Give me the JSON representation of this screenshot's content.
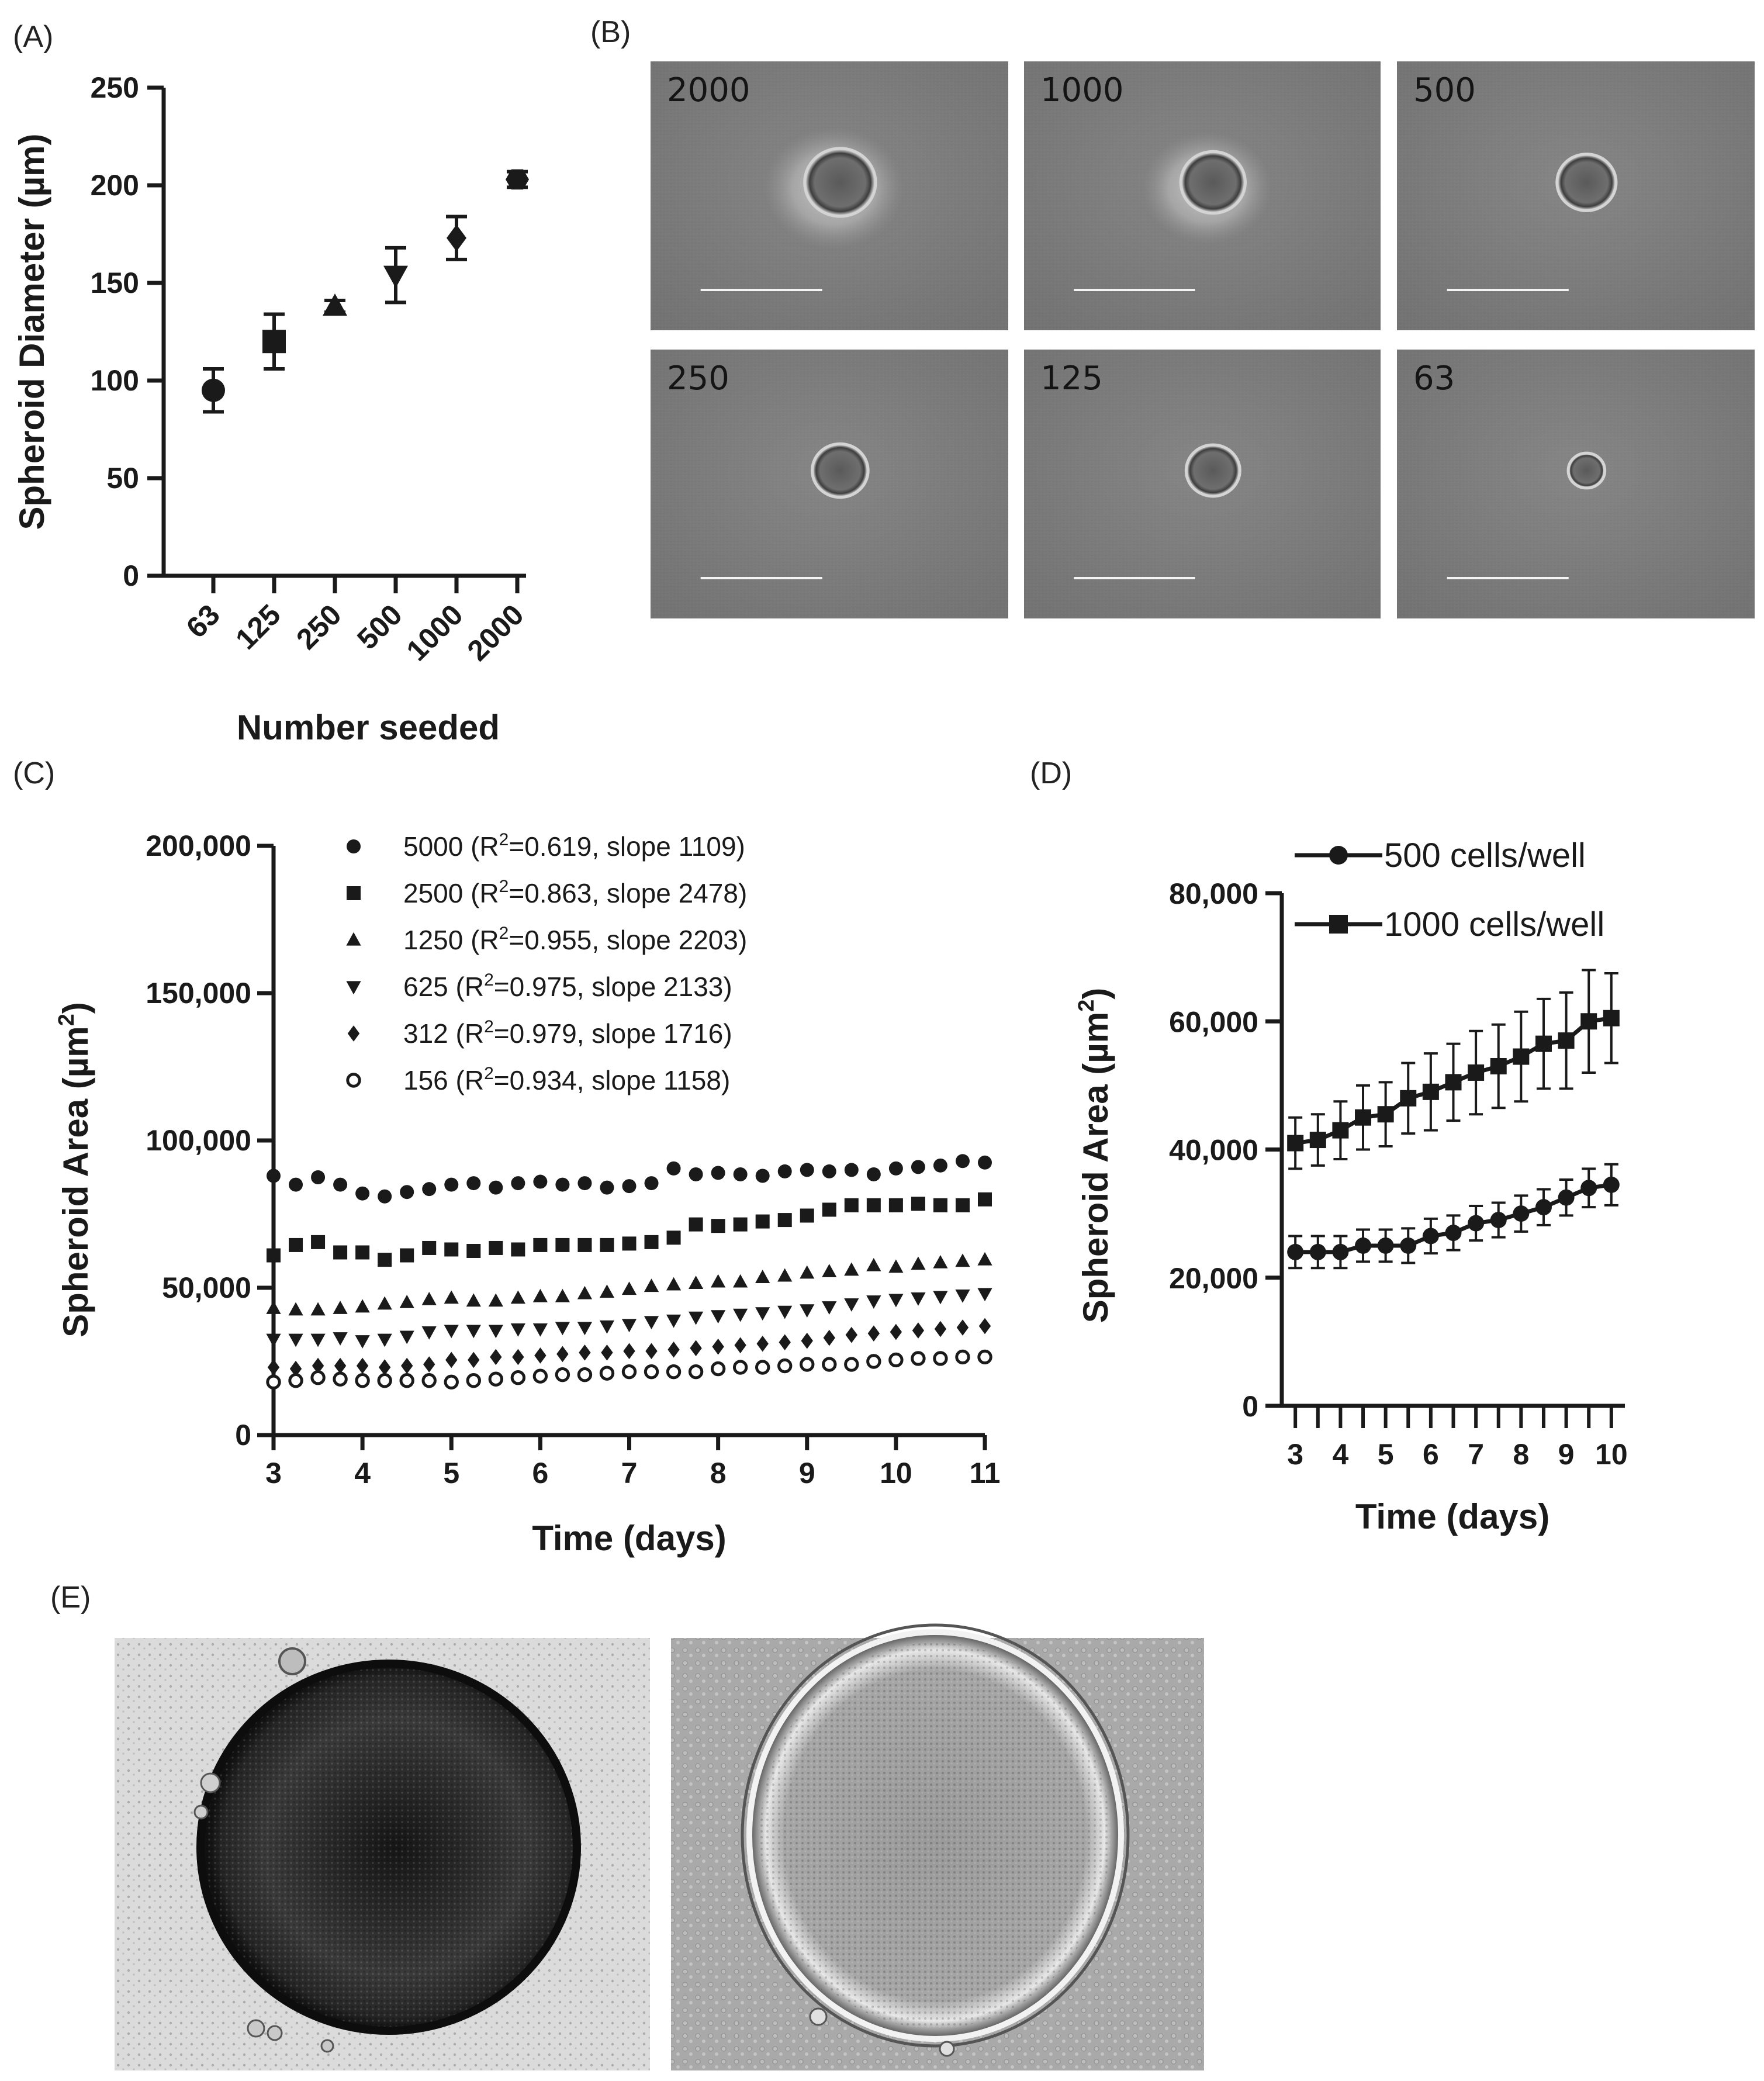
{
  "panels": {
    "A": "(A)",
    "B": "(B)",
    "C": "(C)",
    "D": "(D)",
    "E": "(E)"
  },
  "chart_data": [
    {
      "id": "A",
      "type": "scatter",
      "xlabel": "Number seeded",
      "ylabel": "Spheroid Diameter (µm)",
      "categories": [
        "63",
        "125",
        "250",
        "500",
        "1000",
        "2000"
      ],
      "values": [
        95,
        120,
        138,
        154,
        173,
        203
      ],
      "errors": [
        11,
        14,
        3,
        14,
        11,
        4
      ],
      "markers": [
        "circle",
        "square",
        "triangle-up",
        "triangle-down",
        "diamond",
        "hexagon"
      ],
      "ylim": [
        0,
        250
      ],
      "yticks": [
        "0",
        "50",
        "100",
        "150",
        "200",
        "250"
      ]
    },
    {
      "id": "C",
      "type": "scatter",
      "xlabel": "Time (days)",
      "ylabel_parts": [
        "Spheroid Area (µm",
        "2",
        ")"
      ],
      "xlim": [
        3,
        11
      ],
      "ylim": [
        0,
        200000
      ],
      "xticks": [
        "3",
        "4",
        "5",
        "6",
        "7",
        "8",
        "9",
        "10",
        "11"
      ],
      "yticks": [
        "0",
        "50,000",
        "100,000",
        "150,000",
        "200,000"
      ],
      "x": [
        3,
        3.25,
        3.5,
        3.75,
        4,
        4.25,
        4.5,
        4.75,
        5,
        5.25,
        5.5,
        5.75,
        6,
        6.25,
        6.5,
        6.75,
        7,
        7.25,
        7.5,
        7.75,
        8,
        8.25,
        8.5,
        8.75,
        9,
        9.25,
        9.5,
        9.75,
        10,
        10.25,
        10.5,
        10.75,
        11
      ],
      "series": [
        {
          "name": "5000",
          "marker": "circle",
          "legend": [
            "5000 (R",
            "2",
            "=0.619, slope 1109)"
          ],
          "values": [
            88000,
            85000,
            87500,
            85000,
            82000,
            81000,
            82500,
            83500,
            85000,
            85500,
            84000,
            85500,
            86000,
            85000,
            85500,
            84000,
            84500,
            85500,
            90500,
            88500,
            89000,
            88500,
            88000,
            89500,
            90000,
            89500,
            90000,
            88500,
            90500,
            91000,
            91500,
            93000,
            92500
          ]
        },
        {
          "name": "2500",
          "marker": "square",
          "legend": [
            "2500 (R",
            "2",
            "=0.863, slope 2478)"
          ],
          "values": [
            61000,
            64500,
            65500,
            62000,
            62000,
            59500,
            61000,
            63500,
            63000,
            62500,
            63500,
            63000,
            64500,
            64500,
            64500,
            64500,
            65000,
            65500,
            67000,
            71500,
            71000,
            71500,
            72500,
            73000,
            74500,
            76500,
            78000,
            78000,
            78000,
            78500,
            78000,
            78000,
            80000
          ]
        },
        {
          "name": "1250",
          "marker": "triangle-up",
          "legend": [
            "1250 (R",
            "2",
            "=0.955, slope 2203)"
          ],
          "values": [
            43000,
            42500,
            42500,
            43000,
            43500,
            44500,
            45000,
            46000,
            46500,
            45500,
            45500,
            46500,
            47000,
            47000,
            48000,
            48500,
            49500,
            50500,
            51000,
            51500,
            52000,
            52000,
            53500,
            54000,
            55000,
            55500,
            56000,
            57500,
            57000,
            58000,
            58500,
            59000,
            59500
          ]
        },
        {
          "name": "625",
          "marker": "triangle-down",
          "legend": [
            "625 (R",
            "2",
            "=0.975, slope 2133)"
          ],
          "values": [
            32500,
            32500,
            32500,
            33000,
            32000,
            32500,
            33500,
            35000,
            35500,
            35500,
            35500,
            36000,
            36000,
            36500,
            36500,
            37000,
            37500,
            38500,
            39000,
            40000,
            40500,
            41000,
            41500,
            42000,
            42500,
            43500,
            44500,
            45500,
            46000,
            46500,
            47000,
            47500,
            48000
          ]
        },
        {
          "name": "312",
          "marker": "diamond",
          "legend": [
            "312 (R",
            "2",
            "=0.979, slope 1716)"
          ],
          "values": [
            23000,
            22500,
            23500,
            23500,
            23500,
            23000,
            23500,
            24000,
            25500,
            25500,
            26500,
            26500,
            27000,
            27500,
            28000,
            28000,
            28500,
            28500,
            29000,
            29500,
            30000,
            30500,
            31000,
            31500,
            32000,
            33000,
            34000,
            34500,
            35000,
            35500,
            36000,
            36500,
            37000
          ]
        },
        {
          "name": "156",
          "marker": "open-circle",
          "legend": [
            "156 (R",
            "2",
            "=0.934, slope 1158)"
          ],
          "values": [
            18000,
            18500,
            19500,
            19000,
            18500,
            18500,
            18500,
            18500,
            18000,
            18500,
            19000,
            19500,
            20000,
            20500,
            20500,
            21000,
            21500,
            21500,
            21500,
            21500,
            22500,
            23000,
            23000,
            23500,
            24000,
            24000,
            24000,
            25000,
            25500,
            26000,
            26000,
            26500,
            26500
          ]
        }
      ]
    },
    {
      "id": "D",
      "type": "line",
      "xlabel": "Time (days)",
      "ylabel_parts": [
        "Spheroid Area (µm",
        "2",
        ")"
      ],
      "xlim": [
        2.7,
        10.3
      ],
      "ylim": [
        0,
        80000
      ],
      "xticks": [
        "3",
        "4",
        "5",
        "6",
        "7",
        "8",
        "9",
        "10"
      ],
      "yticks": [
        "0",
        "20,000",
        "40,000",
        "60,000",
        "80,000"
      ],
      "x": [
        3,
        3.5,
        4,
        4.5,
        5,
        5.5,
        6,
        6.5,
        7,
        7.5,
        8,
        8.5,
        9,
        9.5,
        10
      ],
      "series": [
        {
          "name": "500 cells/well",
          "marker": "circle",
          "values": [
            24000,
            24000,
            24000,
            25000,
            25000,
            25000,
            26500,
            27000,
            28500,
            29000,
            30000,
            31000,
            32500,
            34000,
            34500
          ],
          "errors": [
            2500,
            2500,
            2500,
            2500,
            2500,
            2700,
            2700,
            2700,
            2700,
            2700,
            2800,
            2800,
            2800,
            3000,
            3200
          ]
        },
        {
          "name": "1000 cells/well",
          "marker": "square",
          "values": [
            41000,
            41500,
            43000,
            45000,
            45500,
            48000,
            49000,
            50500,
            52000,
            53000,
            54500,
            56500,
            57000,
            60000,
            60500
          ],
          "errors": [
            4000,
            4000,
            4500,
            5000,
            5000,
            5500,
            6000,
            6000,
            6500,
            6500,
            7000,
            7000,
            7500,
            8000,
            7000
          ]
        }
      ]
    }
  ],
  "micrographs": {
    "labels": [
      "2000",
      "1000",
      "500",
      "250",
      "125",
      "63"
    ],
    "spheroid_size": [
      0.66,
      0.6,
      0.55,
      0.52,
      0.5,
      0.34
    ]
  }
}
